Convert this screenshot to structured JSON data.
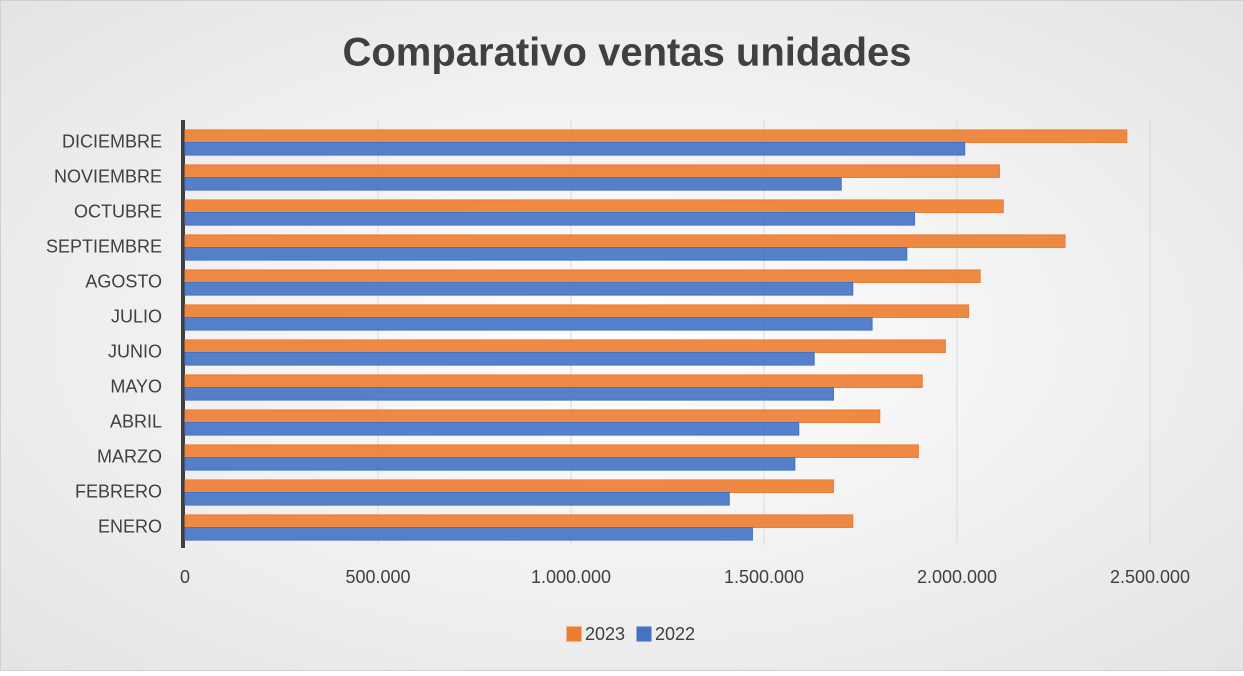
{
  "chart_data": {
    "type": "hbar",
    "title": "Comparativo ventas unidades",
    "categories": [
      "ENERO",
      "FEBRERO",
      "MARZO",
      "ABRIL",
      "MAYO",
      "JUNIO",
      "JULIO",
      "AGOSTO",
      "SEPTIEMBRE",
      "OCTUBRE",
      "NOVIEMBRE",
      "DICIEMBRE"
    ],
    "series": [
      {
        "name": "2023",
        "color": "#ed7d31",
        "values": [
          1730000,
          1680000,
          1900000,
          1800000,
          1910000,
          1970000,
          2030000,
          2060000,
          2280000,
          2120000,
          2110000,
          2440000
        ]
      },
      {
        "name": "2022",
        "color": "#4472c4",
        "values": [
          1470000,
          1410000,
          1580000,
          1590000,
          1680000,
          1630000,
          1780000,
          1730000,
          1870000,
          1890000,
          1700000,
          2020000
        ]
      }
    ],
    "xlim": [
      0,
      2500000
    ],
    "xticks": [
      0,
      {
        "value": 500000,
        "label": "500.000"
      },
      {
        "value": 1000000,
        "label": "1.000.000"
      },
      {
        "value": 1500000,
        "label": "1.500.000"
      },
      {
        "value": 2000000,
        "label": "2.000.000"
      },
      {
        "value": 2500000,
        "label": "2.500.000"
      }
    ],
    "grid": true,
    "legend": "bottom"
  }
}
